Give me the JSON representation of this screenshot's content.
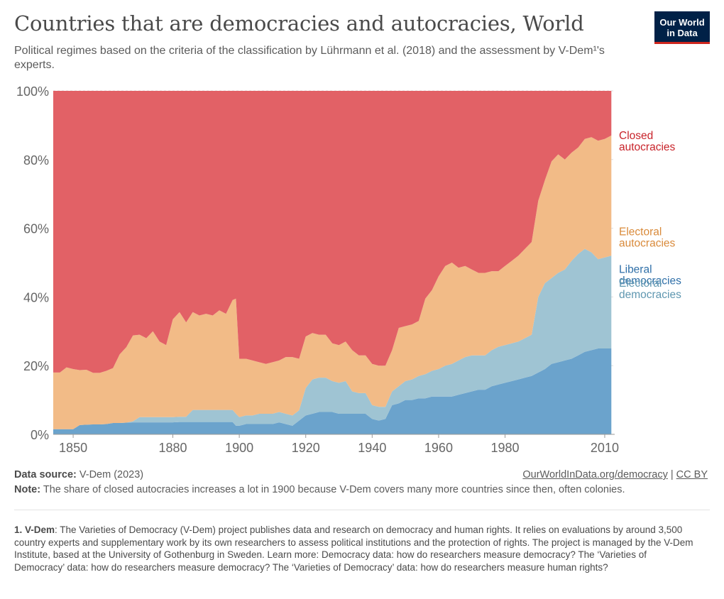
{
  "header": {
    "title": "Countries that are democracies and autocracies, World",
    "subtitle": "Political regimes based on the criteria of the classification by Lührmann et al. (2018) and the assessment by V-Dem¹'s experts.",
    "logo_line1": "Our World",
    "logo_line2": "in Data"
  },
  "footer": {
    "source_label": "Data source:",
    "source_text": "V-Dem (2023)",
    "link_text": "OurWorldInData.org/democracy",
    "separator": "|",
    "license": "CC BY",
    "note_label": "Note:",
    "note_text": "The share of closed autocracies increases a lot in 1900 because V-Dem covers many more countries since then, often colonies.",
    "footnote_label": "1. V-Dem",
    "footnote_text": ": The Varieties of Democracy (V-Dem) project publishes data and research on democracy and human rights. It relies on evaluations by around 3,500 country experts and supplementary work by its own researchers to assess political institutions and the protection of rights. The project is managed by the V-Dem Institute, based at the University of Gothenburg in Sweden. Learn more: Democracy data: how do researchers measure democracy? The ‘Varieties of Democracy’ data: how do researchers measure democracy? The ‘Varieties of Democracy’ data: how do researchers measure human rights?"
  },
  "colors": {
    "liberal": "#6ba3cc",
    "electoral_dem": "#9fc4d3",
    "electoral_aut": "#f2bb87",
    "closed": "#e26166",
    "label_liberal": "#2f6fa8",
    "label_electoral_dem": "#5f97b0",
    "label_electoral_aut": "#d98a3a",
    "label_closed": "#c8232a"
  },
  "chart_data": {
    "type": "area",
    "stacked": "percent",
    "ylim": [
      0,
      100
    ],
    "y_ticks": [
      "0%",
      "20%",
      "40%",
      "60%",
      "80%",
      "100%"
    ],
    "x_ticks": [
      "1850",
      "1880",
      "1900",
      "1920",
      "1940",
      "1960",
      "1980",
      "2010"
    ],
    "xlim": [
      1844,
      2013
    ],
    "grid": "horizontal dotted",
    "legend": "right, inline labels",
    "x": [
      1844,
      1846,
      1848,
      1850,
      1852,
      1854,
      1856,
      1858,
      1860,
      1862,
      1864,
      1866,
      1868,
      1870,
      1872,
      1874,
      1876,
      1878,
      1880,
      1882,
      1884,
      1886,
      1888,
      1890,
      1892,
      1894,
      1896,
      1898,
      1899,
      1900,
      1902,
      1904,
      1906,
      1908,
      1910,
      1912,
      1914,
      1916,
      1918,
      1920,
      1922,
      1924,
      1926,
      1928,
      1930,
      1932,
      1934,
      1936,
      1938,
      1940,
      1942,
      1944,
      1946,
      1948,
      1950,
      1952,
      1954,
      1956,
      1958,
      1960,
      1962,
      1964,
      1966,
      1968,
      1970,
      1972,
      1974,
      1976,
      1978,
      1980,
      1982,
      1984,
      1986,
      1988,
      1990,
      1992,
      1994,
      1996,
      1998,
      2000,
      2002,
      2004,
      2006,
      2008,
      2010,
      2012
    ],
    "series": [
      {
        "name": "Liberal democracies",
        "values": [
          1.5,
          1.5,
          1.5,
          1.5,
          2.7,
          2.8,
          2.9,
          2.9,
          3,
          3.3,
          3.3,
          3.4,
          3.5,
          3.5,
          3.5,
          3.5,
          3.5,
          3.5,
          3.5,
          3.6,
          3.6,
          3.6,
          3.6,
          3.6,
          3.6,
          3.6,
          3.6,
          3.6,
          2.5,
          2.5,
          3.0,
          3.0,
          3.0,
          3.0,
          3.0,
          3.5,
          3.0,
          2.5,
          4.0,
          5.5,
          6.0,
          6.5,
          6.5,
          6.5,
          6.0,
          6.0,
          6.0,
          6.0,
          6.0,
          4.5,
          4.0,
          4.5,
          8.5,
          9.0,
          10.0,
          10.0,
          10.5,
          10.5,
          11.0,
          11.0,
          11.0,
          11.0,
          11.5,
          12.0,
          12.5,
          13.0,
          13.0,
          14.0,
          14.5,
          15.0,
          15.5,
          16.0,
          16.5,
          17.0,
          18.0,
          19.0,
          20.5,
          21.0,
          21.5,
          22.0,
          23.0,
          24.0,
          24.5,
          25.0,
          25.0,
          25.0
        ]
      },
      {
        "name": "Electoral democracies",
        "values": [
          0,
          0,
          0,
          0,
          0,
          0,
          0,
          0,
          0,
          0,
          0,
          0,
          0.3,
          1.5,
          1.5,
          1.5,
          1.5,
          1.5,
          1.5,
          1.5,
          1.5,
          3.5,
          3.5,
          3.5,
          3.5,
          3.5,
          3.5,
          3.5,
          3.5,
          2.5,
          2.5,
          2.5,
          3.0,
          3.0,
          3.0,
          3.0,
          3.0,
          3.0,
          3.0,
          8.0,
          10.0,
          10.0,
          10.0,
          9.0,
          9.0,
          9.5,
          6.5,
          6.0,
          6.0,
          4.0,
          4.0,
          3.5,
          4.0,
          5.0,
          5.5,
          6.0,
          6.5,
          7.0,
          7.5,
          8.0,
          9.0,
          9.5,
          10.0,
          10.5,
          10.5,
          10.0,
          10.0,
          10.5,
          11.0,
          11.0,
          11.0,
          11.0,
          11.5,
          12.0,
          22.0,
          25.0,
          25.0,
          26.0,
          26.5,
          28.5,
          29.5,
          30.0,
          28.5,
          26.0,
          26.5,
          27.0
        ]
      },
      {
        "name": "Electoral autocracies",
        "values": [
          16.5,
          16.5,
          18.0,
          17.5,
          16.0,
          16.0,
          15.0,
          15.0,
          15.5,
          16.0,
          20.0,
          22.0,
          25.0,
          24.0,
          23.0,
          25.0,
          22.0,
          21.0,
          28.5,
          30.5,
          27.5,
          28.5,
          27.5,
          28.0,
          27.5,
          29.0,
          28.0,
          32.0,
          33.5,
          17.0,
          16.5,
          16.0,
          15.0,
          14.5,
          15.0,
          15.0,
          16.5,
          17.0,
          15.0,
          15.0,
          13.5,
          12.5,
          12.5,
          11.0,
          11.0,
          11.5,
          12.0,
          11.0,
          11.0,
          12.0,
          12.0,
          12.0,
          12.0,
          17.0,
          16.0,
          16.0,
          16.0,
          22.0,
          23.5,
          27.0,
          29.0,
          29.5,
          27.0,
          26.5,
          25.0,
          24.0,
          24.0,
          23.0,
          22.0,
          23.0,
          24.0,
          25.0,
          26.0,
          27.0,
          28.0,
          30.0,
          34.0,
          34.5,
          32.0,
          31.5,
          31.0,
          32.0,
          33.5,
          34.5,
          34.5,
          35.0
        ]
      },
      {
        "name": "Closed autocracies",
        "values": [
          82.0,
          82.0,
          80.5,
          81.0,
          81.3,
          81.2,
          82.1,
          82.1,
          81.5,
          80.7,
          76.7,
          74.6,
          71.2,
          71.0,
          72.0,
          70.0,
          73.0,
          74.0,
          66.5,
          64.4,
          67.4,
          64.4,
          65.4,
          64.9,
          65.4,
          63.9,
          64.9,
          60.9,
          60.5,
          78.0,
          78.0,
          78.5,
          79.0,
          79.5,
          79.0,
          78.5,
          77.5,
          77.5,
          78.0,
          71.5,
          70.5,
          71.0,
          71.0,
          73.5,
          74.0,
          73.0,
          75.5,
          77.0,
          77.0,
          79.5,
          80.0,
          80.0,
          75.5,
          69.0,
          68.5,
          68.0,
          67.0,
          60.5,
          58.0,
          54.0,
          51.0,
          50.0,
          51.5,
          51.0,
          52.0,
          53.0,
          53.0,
          52.5,
          52.5,
          51.0,
          49.5,
          48.0,
          46.0,
          44.0,
          32.0,
          26.0,
          20.5,
          18.5,
          20.0,
          18.0,
          16.5,
          14.0,
          13.5,
          14.5,
          14.0,
          13.0
        ]
      }
    ]
  }
}
